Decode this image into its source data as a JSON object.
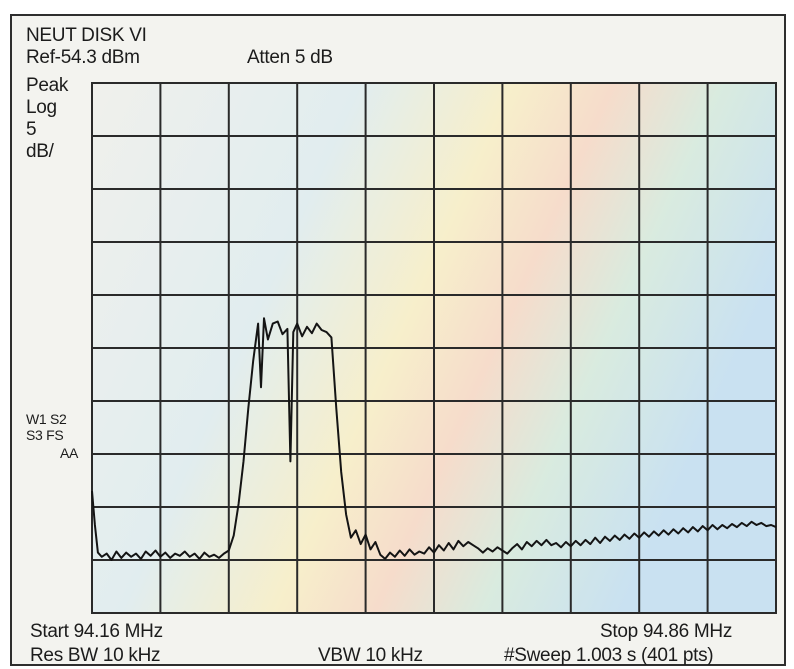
{
  "chart_data": {
    "type": "line",
    "header": {
      "title": "NEUT DISK VI",
      "ref_level": "Ref-54.3 dBm",
      "atten": "Atten 5 dB",
      "detector": "Peak",
      "scale_mode": "Log",
      "scale_value": "5",
      "scale_unit": "dB/"
    },
    "side_markers": [
      "W1 S2",
      "S3   FS",
      "AA"
    ],
    "footer": {
      "start": "Start 94.16 MHz",
      "stop": "Stop 94.86 MHz",
      "rbw": "Res BW 10 kHz",
      "vbw": "VBW 10 kHz",
      "sweep": "#Sweep 1.003 s (401 pts)"
    },
    "x_range_mhz": [
      94.16,
      94.86
    ],
    "y_range_db": [
      -104.3,
      -54.3
    ],
    "ref_level_db": -54.3,
    "db_per_div": 5,
    "grid": true,
    "series": [
      {
        "points": [
          [
            94.16,
            -92.8
          ],
          [
            94.163,
            -96.0
          ],
          [
            94.166,
            -98.6
          ],
          [
            94.17,
            -99.0
          ],
          [
            94.175,
            -98.7
          ],
          [
            94.18,
            -99.3
          ],
          [
            94.185,
            -98.5
          ],
          [
            94.19,
            -99.1
          ],
          [
            94.195,
            -98.6
          ],
          [
            94.2,
            -99.0
          ],
          [
            94.205,
            -98.7
          ],
          [
            94.21,
            -99.2
          ],
          [
            94.215,
            -98.5
          ],
          [
            94.22,
            -98.9
          ],
          [
            94.225,
            -98.4
          ],
          [
            94.23,
            -99.0
          ],
          [
            94.235,
            -98.6
          ],
          [
            94.24,
            -99.1
          ],
          [
            94.245,
            -98.7
          ],
          [
            94.25,
            -98.9
          ],
          [
            94.255,
            -98.5
          ],
          [
            94.26,
            -99.0
          ],
          [
            94.265,
            -98.7
          ],
          [
            94.27,
            -99.2
          ],
          [
            94.275,
            -98.6
          ],
          [
            94.28,
            -99.0
          ],
          [
            94.285,
            -98.8
          ],
          [
            94.29,
            -99.1
          ],
          [
            94.295,
            -98.7
          ],
          [
            94.3,
            -98.4
          ],
          [
            94.305,
            -97.0
          ],
          [
            94.31,
            -94.0
          ],
          [
            94.315,
            -90.0
          ],
          [
            94.32,
            -85.0
          ],
          [
            94.325,
            -80.5
          ],
          [
            94.33,
            -77.0
          ],
          [
            94.333,
            -83.0
          ],
          [
            94.336,
            -76.5
          ],
          [
            94.34,
            -78.5
          ],
          [
            94.345,
            -77.0
          ],
          [
            94.35,
            -76.8
          ],
          [
            94.355,
            -78.0
          ],
          [
            94.36,
            -77.5
          ],
          [
            94.363,
            -90.0
          ],
          [
            94.366,
            -77.8
          ],
          [
            94.37,
            -77.0
          ],
          [
            94.375,
            -78.2
          ],
          [
            94.38,
            -77.3
          ],
          [
            94.385,
            -77.9
          ],
          [
            94.39,
            -77.0
          ],
          [
            94.395,
            -77.6
          ],
          [
            94.4,
            -77.8
          ],
          [
            94.405,
            -78.3
          ],
          [
            94.41,
            -85.0
          ],
          [
            94.415,
            -91.0
          ],
          [
            94.42,
            -95.0
          ],
          [
            94.425,
            -97.2
          ],
          [
            94.43,
            -96.5
          ],
          [
            94.435,
            -97.8
          ],
          [
            94.44,
            -96.9
          ],
          [
            94.445,
            -98.3
          ],
          [
            94.45,
            -97.6
          ],
          [
            94.455,
            -98.8
          ],
          [
            94.46,
            -99.2
          ],
          [
            94.465,
            -98.6
          ],
          [
            94.47,
            -99.0
          ],
          [
            94.475,
            -98.4
          ],
          [
            94.48,
            -98.9
          ],
          [
            94.485,
            -98.3
          ],
          [
            94.49,
            -98.8
          ],
          [
            94.495,
            -98.5
          ],
          [
            94.5,
            -98.7
          ],
          [
            94.505,
            -98.1
          ],
          [
            94.51,
            -98.6
          ],
          [
            94.515,
            -97.9
          ],
          [
            94.52,
            -98.4
          ],
          [
            94.525,
            -97.7
          ],
          [
            94.53,
            -98.3
          ],
          [
            94.535,
            -97.5
          ],
          [
            94.54,
            -98.0
          ],
          [
            94.545,
            -97.6
          ],
          [
            94.55,
            -97.9
          ],
          [
            94.555,
            -98.2
          ],
          [
            94.56,
            -98.6
          ],
          [
            94.565,
            -98.2
          ],
          [
            94.57,
            -98.5
          ],
          [
            94.575,
            -98.1
          ],
          [
            94.58,
            -98.4
          ],
          [
            94.585,
            -98.7
          ],
          [
            94.59,
            -98.2
          ],
          [
            94.595,
            -97.8
          ],
          [
            94.6,
            -98.3
          ],
          [
            94.605,
            -97.6
          ],
          [
            94.61,
            -98.0
          ],
          [
            94.615,
            -97.5
          ],
          [
            94.62,
            -97.9
          ],
          [
            94.625,
            -97.4
          ],
          [
            94.63,
            -97.9
          ],
          [
            94.635,
            -97.7
          ],
          [
            94.64,
            -98.1
          ],
          [
            94.645,
            -97.6
          ],
          [
            94.65,
            -98.0
          ],
          [
            94.655,
            -97.5
          ],
          [
            94.66,
            -97.9
          ],
          [
            94.665,
            -97.4
          ],
          [
            94.67,
            -97.8
          ],
          [
            94.675,
            -97.2
          ],
          [
            94.68,
            -97.7
          ],
          [
            94.685,
            -97.1
          ],
          [
            94.69,
            -97.5
          ],
          [
            94.695,
            -97.0
          ],
          [
            94.7,
            -97.4
          ],
          [
            94.705,
            -96.9
          ],
          [
            94.71,
            -97.3
          ],
          [
            94.715,
            -96.8
          ],
          [
            94.72,
            -97.2
          ],
          [
            94.725,
            -96.7
          ],
          [
            94.73,
            -97.1
          ],
          [
            94.735,
            -96.6
          ],
          [
            94.74,
            -97.0
          ],
          [
            94.745,
            -96.5
          ],
          [
            94.75,
            -96.9
          ],
          [
            94.755,
            -96.4
          ],
          [
            94.76,
            -96.8
          ],
          [
            94.765,
            -96.3
          ],
          [
            94.77,
            -96.7
          ],
          [
            94.775,
            -96.2
          ],
          [
            94.78,
            -96.6
          ],
          [
            94.785,
            -96.1
          ],
          [
            94.79,
            -96.5
          ],
          [
            94.795,
            -96.0
          ],
          [
            94.8,
            -96.4
          ],
          [
            94.805,
            -96.0
          ],
          [
            94.81,
            -96.3
          ],
          [
            94.815,
            -95.9
          ],
          [
            94.82,
            -96.2
          ],
          [
            94.825,
            -95.8
          ],
          [
            94.83,
            -96.1
          ],
          [
            94.835,
            -95.7
          ],
          [
            94.84,
            -96.0
          ],
          [
            94.845,
            -95.8
          ],
          [
            94.85,
            -96.1
          ],
          [
            94.855,
            -96.0
          ],
          [
            94.86,
            -96.2
          ]
        ]
      }
    ],
    "trace_color": "#141414",
    "grid_color": "#2a2a2a",
    "background_tint": [
      "#eeeeea",
      "#d9ebee",
      "#f7f0c8",
      "#f8d9c7",
      "#d7e8e0",
      "#cfe3f0"
    ]
  }
}
